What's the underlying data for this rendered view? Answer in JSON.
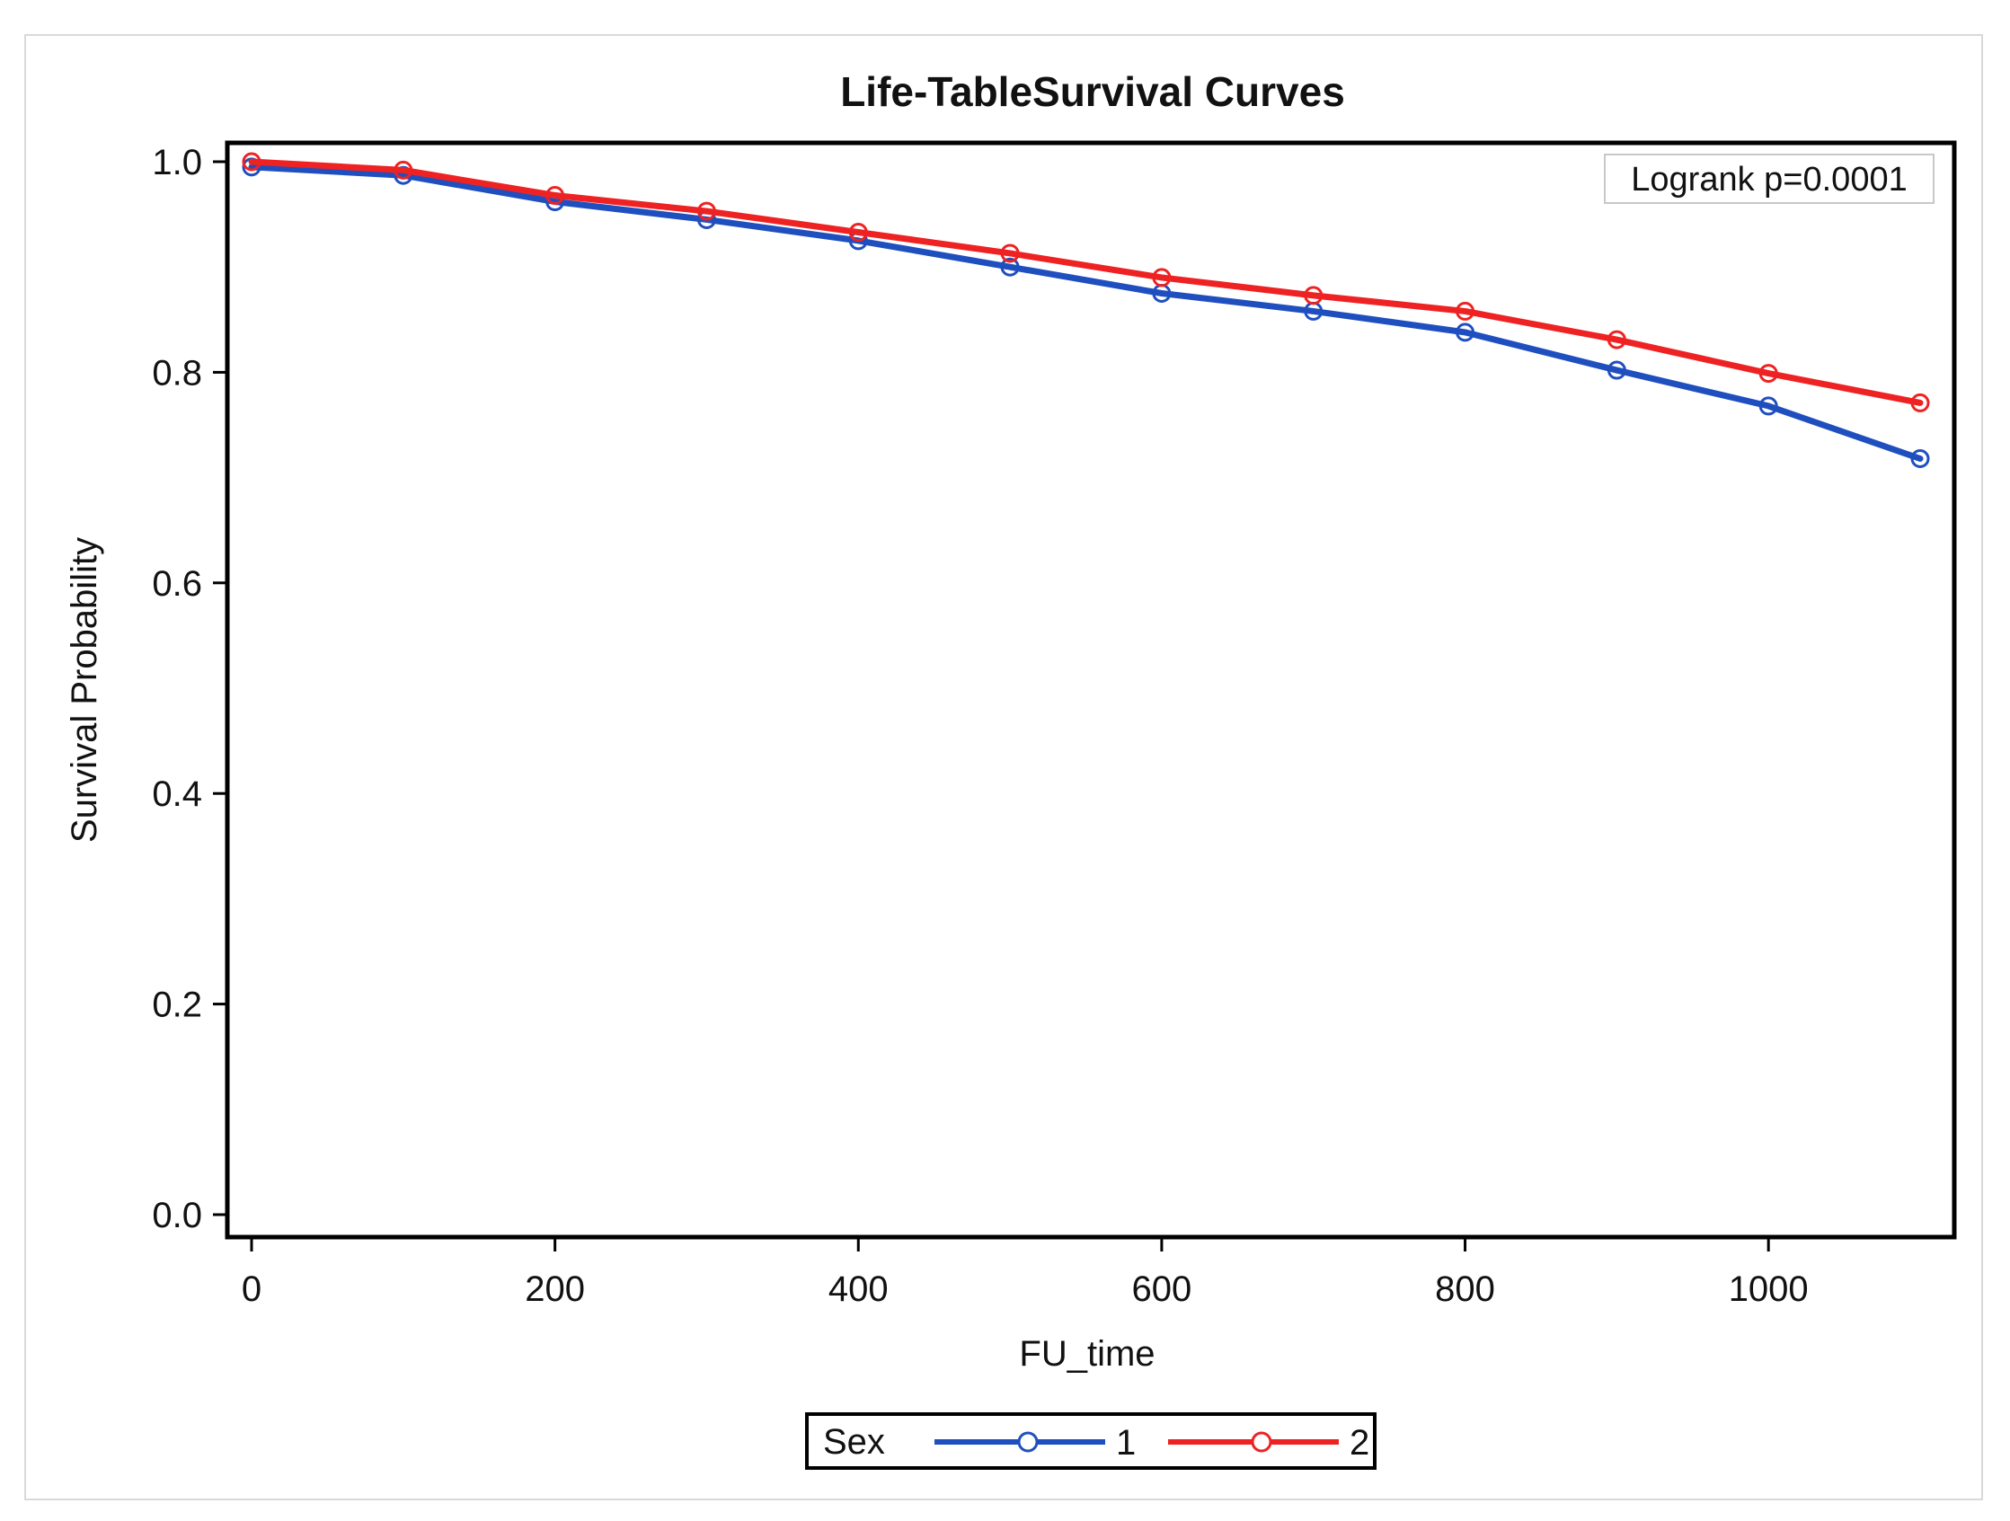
{
  "chart_data": {
    "type": "line",
    "title": "Life-TableSurvival Curves",
    "xlabel": "FU_time",
    "ylabel": "Survival Probability",
    "xlim": [
      0,
      1100
    ],
    "ylim": [
      0,
      1.0
    ],
    "xticks": [
      "0",
      "200",
      "400",
      "600",
      "800",
      "1000"
    ],
    "yticks": [
      "0.0",
      "0.2",
      "0.4",
      "0.6",
      "0.8",
      "1.0"
    ],
    "x": [
      0,
      100,
      200,
      300,
      400,
      500,
      600,
      700,
      800,
      900,
      1000,
      1100
    ],
    "series": [
      {
        "name": "1",
        "color": "#1f4fbf",
        "values": [
          0.995,
          0.987,
          0.962,
          0.945,
          0.925,
          0.9,
          0.875,
          0.858,
          0.838,
          0.802,
          0.768,
          0.718
        ]
      },
      {
        "name": "2",
        "color": "#ee2222",
        "values": [
          1.0,
          0.992,
          0.968,
          0.953,
          0.933,
          0.913,
          0.89,
          0.873,
          0.858,
          0.831,
          0.799,
          0.771
        ]
      }
    ],
    "annotation": "Logrank p=0.0001",
    "legend": {
      "title": "Sex",
      "position": "bottom-center"
    },
    "grid": false
  }
}
